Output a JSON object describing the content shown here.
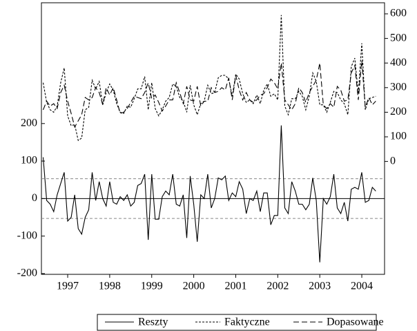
{
  "chart_data": {
    "type": "line",
    "categories": [
      null,
      null,
      null,
      null,
      null,
      null,
      null,
      "1997",
      null,
      null,
      null,
      null,
      null,
      null,
      null,
      null,
      null,
      null,
      null,
      "1998",
      null,
      null,
      null,
      null,
      null,
      null,
      null,
      null,
      null,
      null,
      null,
      "1999",
      null,
      null,
      null,
      null,
      null,
      null,
      null,
      null,
      null,
      null,
      null,
      "2000",
      null,
      null,
      null,
      null,
      null,
      null,
      null,
      null,
      null,
      null,
      null,
      "2001",
      null,
      null,
      null,
      null,
      null,
      null,
      null,
      null,
      null,
      null,
      null,
      "2002",
      null,
      null,
      null,
      null,
      null,
      null,
      null,
      null,
      null,
      null,
      null,
      "2003",
      null,
      null,
      null,
      null,
      null,
      null,
      null,
      null,
      null,
      null,
      null,
      "2004",
      null,
      null,
      null,
      null
    ],
    "series": [
      {
        "name": "Reszty",
        "color": "#000000",
        "dash": "solid",
        "axis": "y",
        "values": [
          110,
          -5,
          -15,
          -35,
          10,
          40,
          70,
          -60,
          -50,
          10,
          -80,
          -95,
          -50,
          -30,
          70,
          -5,
          45,
          0,
          -20,
          45,
          -10,
          -15,
          5,
          -5,
          10,
          -20,
          -10,
          35,
          40,
          65,
          -110,
          65,
          -55,
          -55,
          5,
          20,
          10,
          65,
          -15,
          -20,
          10,
          -105,
          60,
          -15,
          -115,
          10,
          0,
          65,
          -25,
          0,
          55,
          50,
          60,
          -5,
          15,
          5,
          45,
          25,
          -40,
          0,
          -5,
          20,
          -35,
          15,
          15,
          -70,
          -45,
          -45,
          195,
          -25,
          -40,
          45,
          20,
          -15,
          -15,
          -30,
          -15,
          55,
          -5,
          -170,
          0,
          -15,
          5,
          65,
          -25,
          -40,
          -10,
          -60,
          25,
          30,
          25,
          70,
          -10,
          -5,
          30,
          20
        ]
      },
      {
        "name": "Faktyczne",
        "color": "#000000",
        "dash": "short",
        "axis": "y2",
        "values": [
          320,
          240,
          210,
          200,
          225,
          320,
          380,
          185,
          145,
          150,
          85,
          95,
          210,
          220,
          330,
          295,
          325,
          230,
          280,
          315,
          290,
          235,
          200,
          195,
          225,
          220,
          255,
          295,
          295,
          345,
          210,
          320,
          215,
          185,
          210,
          245,
          260,
          315,
          305,
          260,
          245,
          200,
          310,
          230,
          190,
          235,
          245,
          310,
          275,
          280,
          340,
          350,
          350,
          335,
          265,
          355,
          335,
          275,
          240,
          250,
          235,
          270,
          235,
          290,
          315,
          265,
          275,
          250,
          595,
          225,
          190,
          255,
          255,
          285,
          265,
          210,
          265,
          360,
          325,
          230,
          230,
          200,
          240,
          285,
          280,
          250,
          235,
          190,
          385,
          420,
          275,
          480,
          210,
          255,
          260,
          265
        ]
      },
      {
        "name": "Dopasowane",
        "color": "#000000",
        "dash": "long",
        "axis": "y2",
        "values": [
          210,
          245,
          225,
          235,
          215,
          280,
          310,
          245,
          195,
          140,
          165,
          190,
          260,
          250,
          260,
          300,
          280,
          230,
          300,
          270,
          300,
          250,
          195,
          200,
          215,
          240,
          265,
          260,
          255,
          280,
          320,
          255,
          270,
          240,
          205,
          225,
          250,
          250,
          320,
          280,
          235,
          305,
          250,
          245,
          305,
          225,
          245,
          245,
          300,
          280,
          285,
          300,
          290,
          340,
          250,
          350,
          290,
          250,
          280,
          250,
          240,
          250,
          270,
          275,
          300,
          335,
          320,
          295,
          400,
          250,
          230,
          210,
          235,
          300,
          280,
          240,
          280,
          305,
          330,
          400,
          230,
          215,
          235,
          220,
          305,
          290,
          245,
          250,
          360,
          390,
          250,
          410,
          220,
          260,
          230,
          245
        ]
      }
    ],
    "ylim": [
      -202,
      522
    ],
    "yticks": [
      -200,
      -100,
      0,
      100,
      200
    ],
    "y2lim": [
      -459,
      645
    ],
    "y2ticks": [
      0,
      100,
      200,
      300,
      400,
      500,
      600
    ],
    "reference_lines": [
      53,
      -53
    ],
    "legend": "bottom"
  }
}
